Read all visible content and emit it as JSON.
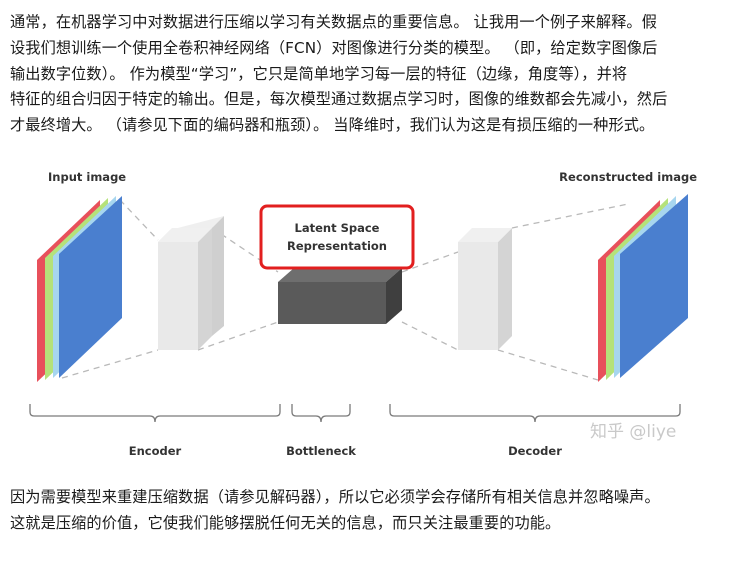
{
  "paragraph_1": {
    "lines": [
      "通常，在机器学习中对数据进行压缩以学习有关数据点的重要信息。 让我用一个例子来解释。假",
      "设我们想训练一个使用全卷积神经网络（FCN）对图像进行分类的模型。 （即，给定数字图像后",
      "输出数字位数）。 作为模型“学习”，它只是简单地学习每一层的特征（边缘，角度等），并将",
      "特征的组合归因于特定的输出。但是，每次模型通过数据点学习时，图像的维数都会先减小，然后",
      "才最终增大。 （请参见下面的编码器和瓶颈）。 当降维时，我们认为这是有损压缩的一种形式。"
    ]
  },
  "figure": {
    "input_label": "Input image",
    "output_label": "Reconstructed image",
    "latent_label_line1": "Latent Space",
    "latent_label_line2": "Representation",
    "encoder_label": "Encoder",
    "bottleneck_label": "Bottleneck",
    "decoder_label": "Decoder",
    "watermark": "知乎 @liye",
    "colors": {
      "red_channel": "#e8505b",
      "green_channel": "#b5e27a",
      "blue_channel": "#4a7fcf",
      "highlight_box": "#e21f1f",
      "bottleneck_block": "#5a5a5a",
      "grey_block": "#e3e3e3"
    }
  },
  "paragraph_2": {
    "lines": [
      "因为需要模型来重建压缩数据（请参见解码器），所以它必须学会存储所有相关信息并忽略噪声。",
      "这就是压缩的价值，它使我们能够摆脱任何无关的信息，而只关注最重要的功能。"
    ]
  }
}
